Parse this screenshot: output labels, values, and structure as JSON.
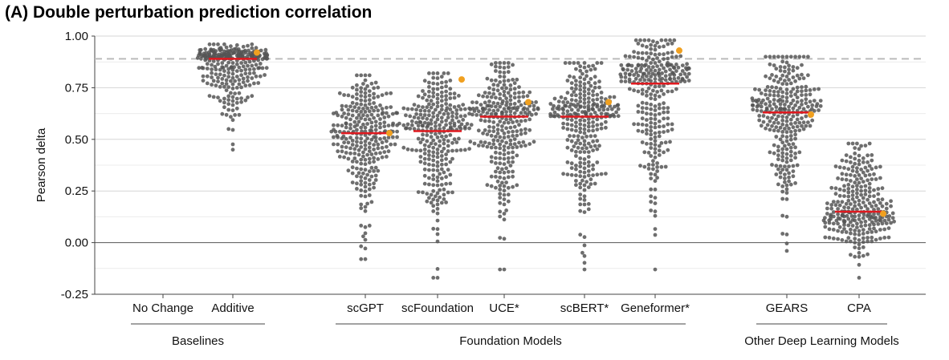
{
  "title": "(A) Double perturbation prediction correlation",
  "chart_data": {
    "type": "scatter",
    "title": "(A) Double perturbation prediction correlation",
    "ylabel": "Pearson delta",
    "ylim": [
      -0.25,
      1.0
    ],
    "yticks": [
      -0.25,
      0.0,
      0.25,
      0.5,
      0.75,
      1.0
    ],
    "ytick_labels": [
      "-0.25",
      "0.00",
      "0.25",
      "0.50",
      "0.75",
      "1.00"
    ],
    "grid": true,
    "reference_line": 0.89,
    "colors": {
      "points": "#555555",
      "median": "#e0191f",
      "highlight": "#f0a020",
      "reference": "#bbbbbb"
    },
    "groups": [
      {
        "label": "Baselines",
        "categories": [
          "No Change",
          "Additive"
        ]
      },
      {
        "label": "Foundation Models",
        "categories": [
          "scGPT",
          "scFoundation",
          "UCE*",
          "scBERT*",
          "Geneformer*"
        ]
      },
      {
        "label": "Other Deep Learning Models",
        "categories": [
          "GEARS",
          "CPA"
        ]
      }
    ],
    "series": [
      {
        "category": "No Change",
        "median": null,
        "highlight": null,
        "min": null,
        "max": null
      },
      {
        "category": "Additive",
        "median": 0.89,
        "highlight": 0.92,
        "min": 0.45,
        "max": 0.96
      },
      {
        "category": "scGPT",
        "median": 0.53,
        "highlight": 0.53,
        "min": -0.08,
        "max": 0.81
      },
      {
        "category": "scFoundation",
        "median": 0.54,
        "highlight": 0.79,
        "min": -0.17,
        "max": 0.82
      },
      {
        "category": "UCE*",
        "median": 0.61,
        "highlight": 0.68,
        "min": -0.13,
        "max": 0.87
      },
      {
        "category": "scBERT*",
        "median": 0.61,
        "highlight": 0.68,
        "min": -0.13,
        "max": 0.87
      },
      {
        "category": "Geneformer*",
        "median": 0.77,
        "highlight": 0.93,
        "min": -0.13,
        "max": 0.98
      },
      {
        "category": "GEARS",
        "median": 0.63,
        "highlight": 0.62,
        "min": -0.04,
        "max": 0.9
      },
      {
        "category": "CPA",
        "median": 0.15,
        "highlight": 0.14,
        "min": -0.17,
        "max": 0.48
      }
    ]
  }
}
